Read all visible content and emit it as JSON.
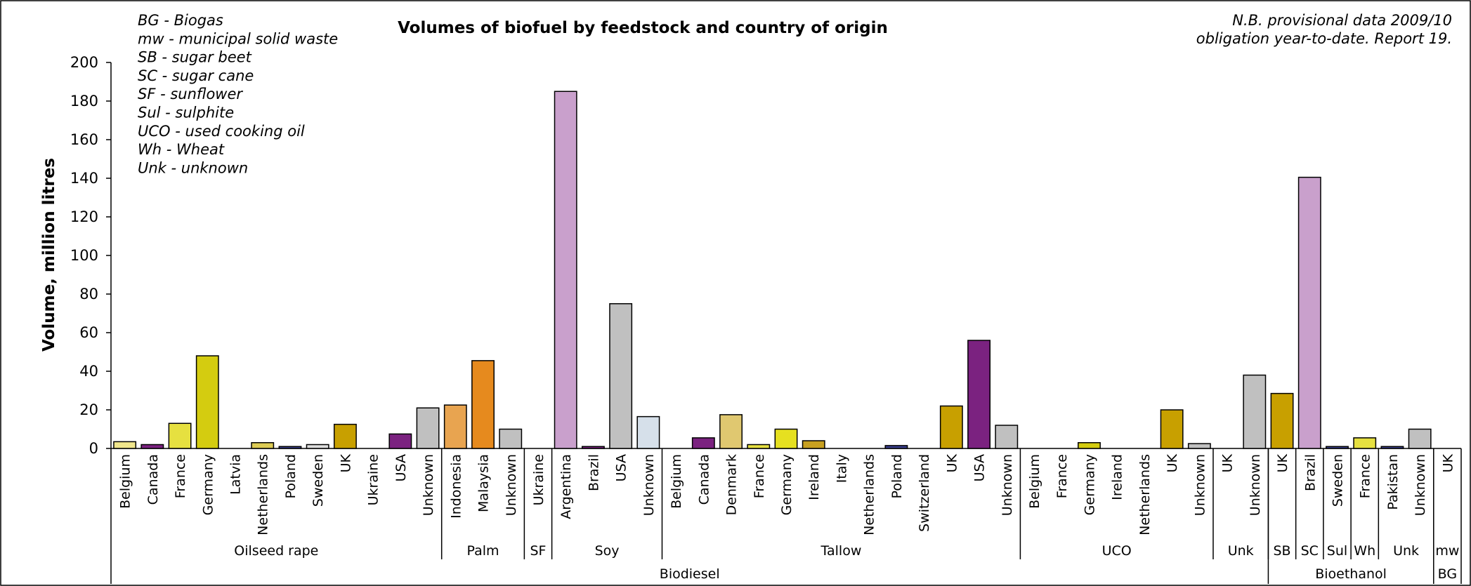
{
  "chart_data": {
    "type": "bar",
    "title": "Volumes of biofuel by feedstock and country of origin",
    "note": [
      "N.B. provisional data 2009/10",
      "obligation year-to-date. Report 19."
    ],
    "legend_lines": [
      "BG - Biogas",
      "mw - municipal solid waste",
      "SB - sugar beet",
      "SC - sugar cane",
      "SF - sunflower",
      "Sul - sulphite",
      "UCO - used cooking oil",
      "Wh - Wheat",
      "Unk - unknown"
    ],
    "ylabel": "Volume, million litres",
    "ylim": [
      0,
      200
    ],
    "yticks": [
      0,
      20,
      40,
      60,
      80,
      100,
      120,
      140,
      160,
      180,
      200
    ],
    "grid": false,
    "bars": [
      {
        "category": "Belgium",
        "value": 3.5,
        "color": "#f0e68c"
      },
      {
        "category": "Canada",
        "value": 2,
        "color": "#7b2280"
      },
      {
        "category": "France",
        "value": 13,
        "color": "#e6e040"
      },
      {
        "category": "Germany",
        "value": 48,
        "color": "#d4cc10"
      },
      {
        "category": "Latvia",
        "value": 0,
        "color": "#cccccc"
      },
      {
        "category": "Netherlands",
        "value": 3,
        "color": "#ddcc55"
      },
      {
        "category": "Poland",
        "value": 1,
        "color": "#3a3f8f"
      },
      {
        "category": "Sweden",
        "value": 2,
        "color": "#dddddd"
      },
      {
        "category": "UK",
        "value": 12.5,
        "color": "#c8a000"
      },
      {
        "category": "Ukraine",
        "value": 0,
        "color": "#cccccc"
      },
      {
        "category": "USA",
        "value": 7.5,
        "color": "#7b2280"
      },
      {
        "category": "Unknown",
        "value": 21,
        "color": "#c0c0c0"
      },
      {
        "category": "Indonesia",
        "value": 22.5,
        "color": "#e8a450"
      },
      {
        "category": "Malaysia",
        "value": 45.5,
        "color": "#e68a1e"
      },
      {
        "category": "Unknown",
        "value": 10,
        "color": "#c0c0c0"
      },
      {
        "category": "Ukraine",
        "value": 0,
        "color": "#cccccc"
      },
      {
        "category": "Argentina",
        "value": 185,
        "color": "#c9a0cc"
      },
      {
        "category": "Brazil",
        "value": 1,
        "color": "#7b2280"
      },
      {
        "category": "USA",
        "value": 75,
        "color": "#c0c0c0"
      },
      {
        "category": "Unknown",
        "value": 16.5,
        "color": "#d6e0ea"
      },
      {
        "category": "Belgium",
        "value": 0,
        "color": "#cccccc"
      },
      {
        "category": "Canada",
        "value": 5.5,
        "color": "#7b2280"
      },
      {
        "category": "Denmark",
        "value": 17.5,
        "color": "#e0c870"
      },
      {
        "category": "France",
        "value": 2,
        "color": "#e6e040"
      },
      {
        "category": "Germany",
        "value": 10,
        "color": "#e6e020"
      },
      {
        "category": "Ireland",
        "value": 4,
        "color": "#c8a020"
      },
      {
        "category": "Italy",
        "value": 0,
        "color": "#cccccc"
      },
      {
        "category": "Netherlands",
        "value": 0,
        "color": "#cccccc"
      },
      {
        "category": "Poland",
        "value": 1.5,
        "color": "#3a3f8f"
      },
      {
        "category": "Switzerland",
        "value": 0,
        "color": "#cccccc"
      },
      {
        "category": "UK",
        "value": 22,
        "color": "#c8a000"
      },
      {
        "category": "USA",
        "value": 56,
        "color": "#7b2280"
      },
      {
        "category": "Unknown",
        "value": 12,
        "color": "#c0c0c0"
      },
      {
        "category": "Belgium",
        "value": 0,
        "color": "#cccccc"
      },
      {
        "category": "France",
        "value": 0,
        "color": "#cccccc"
      },
      {
        "category": "Germany",
        "value": 3,
        "color": "#d4cc10"
      },
      {
        "category": "Ireland",
        "value": 0,
        "color": "#cccccc"
      },
      {
        "category": "Netherlands",
        "value": 0,
        "color": "#cccccc"
      },
      {
        "category": "UK",
        "value": 20,
        "color": "#c8a000"
      },
      {
        "category": "Unknown",
        "value": 2.5,
        "color": "#c0c0c0"
      },
      {
        "category": "UK",
        "value": 0,
        "color": "#cccccc"
      },
      {
        "category": "Unknown",
        "value": 38,
        "color": "#c0c0c0"
      },
      {
        "category": "UK",
        "value": 28.5,
        "color": "#c8a000"
      },
      {
        "category": "Brazil",
        "value": 140.5,
        "color": "#c9a0cc"
      },
      {
        "category": "Sweden",
        "value": 1,
        "color": "#3a3f8f"
      },
      {
        "category": "France",
        "value": 5.5,
        "color": "#e6e040"
      },
      {
        "category": "Pakistan",
        "value": 1,
        "color": "#3a3f8f"
      },
      {
        "category": "Unknown",
        "value": 10,
        "color": "#c0c0c0"
      },
      {
        "category": "UK",
        "value": 0,
        "color": "#cccccc"
      }
    ],
    "feedstock_groups": [
      {
        "label": "Oilseed rape",
        "count": 12
      },
      {
        "label": "Palm",
        "count": 3
      },
      {
        "label": "SF",
        "count": 1
      },
      {
        "label": "Soy",
        "count": 4
      },
      {
        "label": "Tallow",
        "count": 13
      },
      {
        "label": "UCO",
        "count": 7
      },
      {
        "label": "Unk",
        "count": 2
      },
      {
        "label": "SB",
        "count": 1
      },
      {
        "label": "SC",
        "count": 1
      },
      {
        "label": "Sul",
        "count": 1
      },
      {
        "label": "Wh",
        "count": 1
      },
      {
        "label": "Unk",
        "count": 2
      },
      {
        "label": "mw",
        "count": 1
      }
    ],
    "fuel_groups": [
      {
        "label": "Biodiesel",
        "count": 42
      },
      {
        "label": "Bioethanol",
        "count": 6
      },
      {
        "label": "BG",
        "count": 1
      }
    ]
  }
}
